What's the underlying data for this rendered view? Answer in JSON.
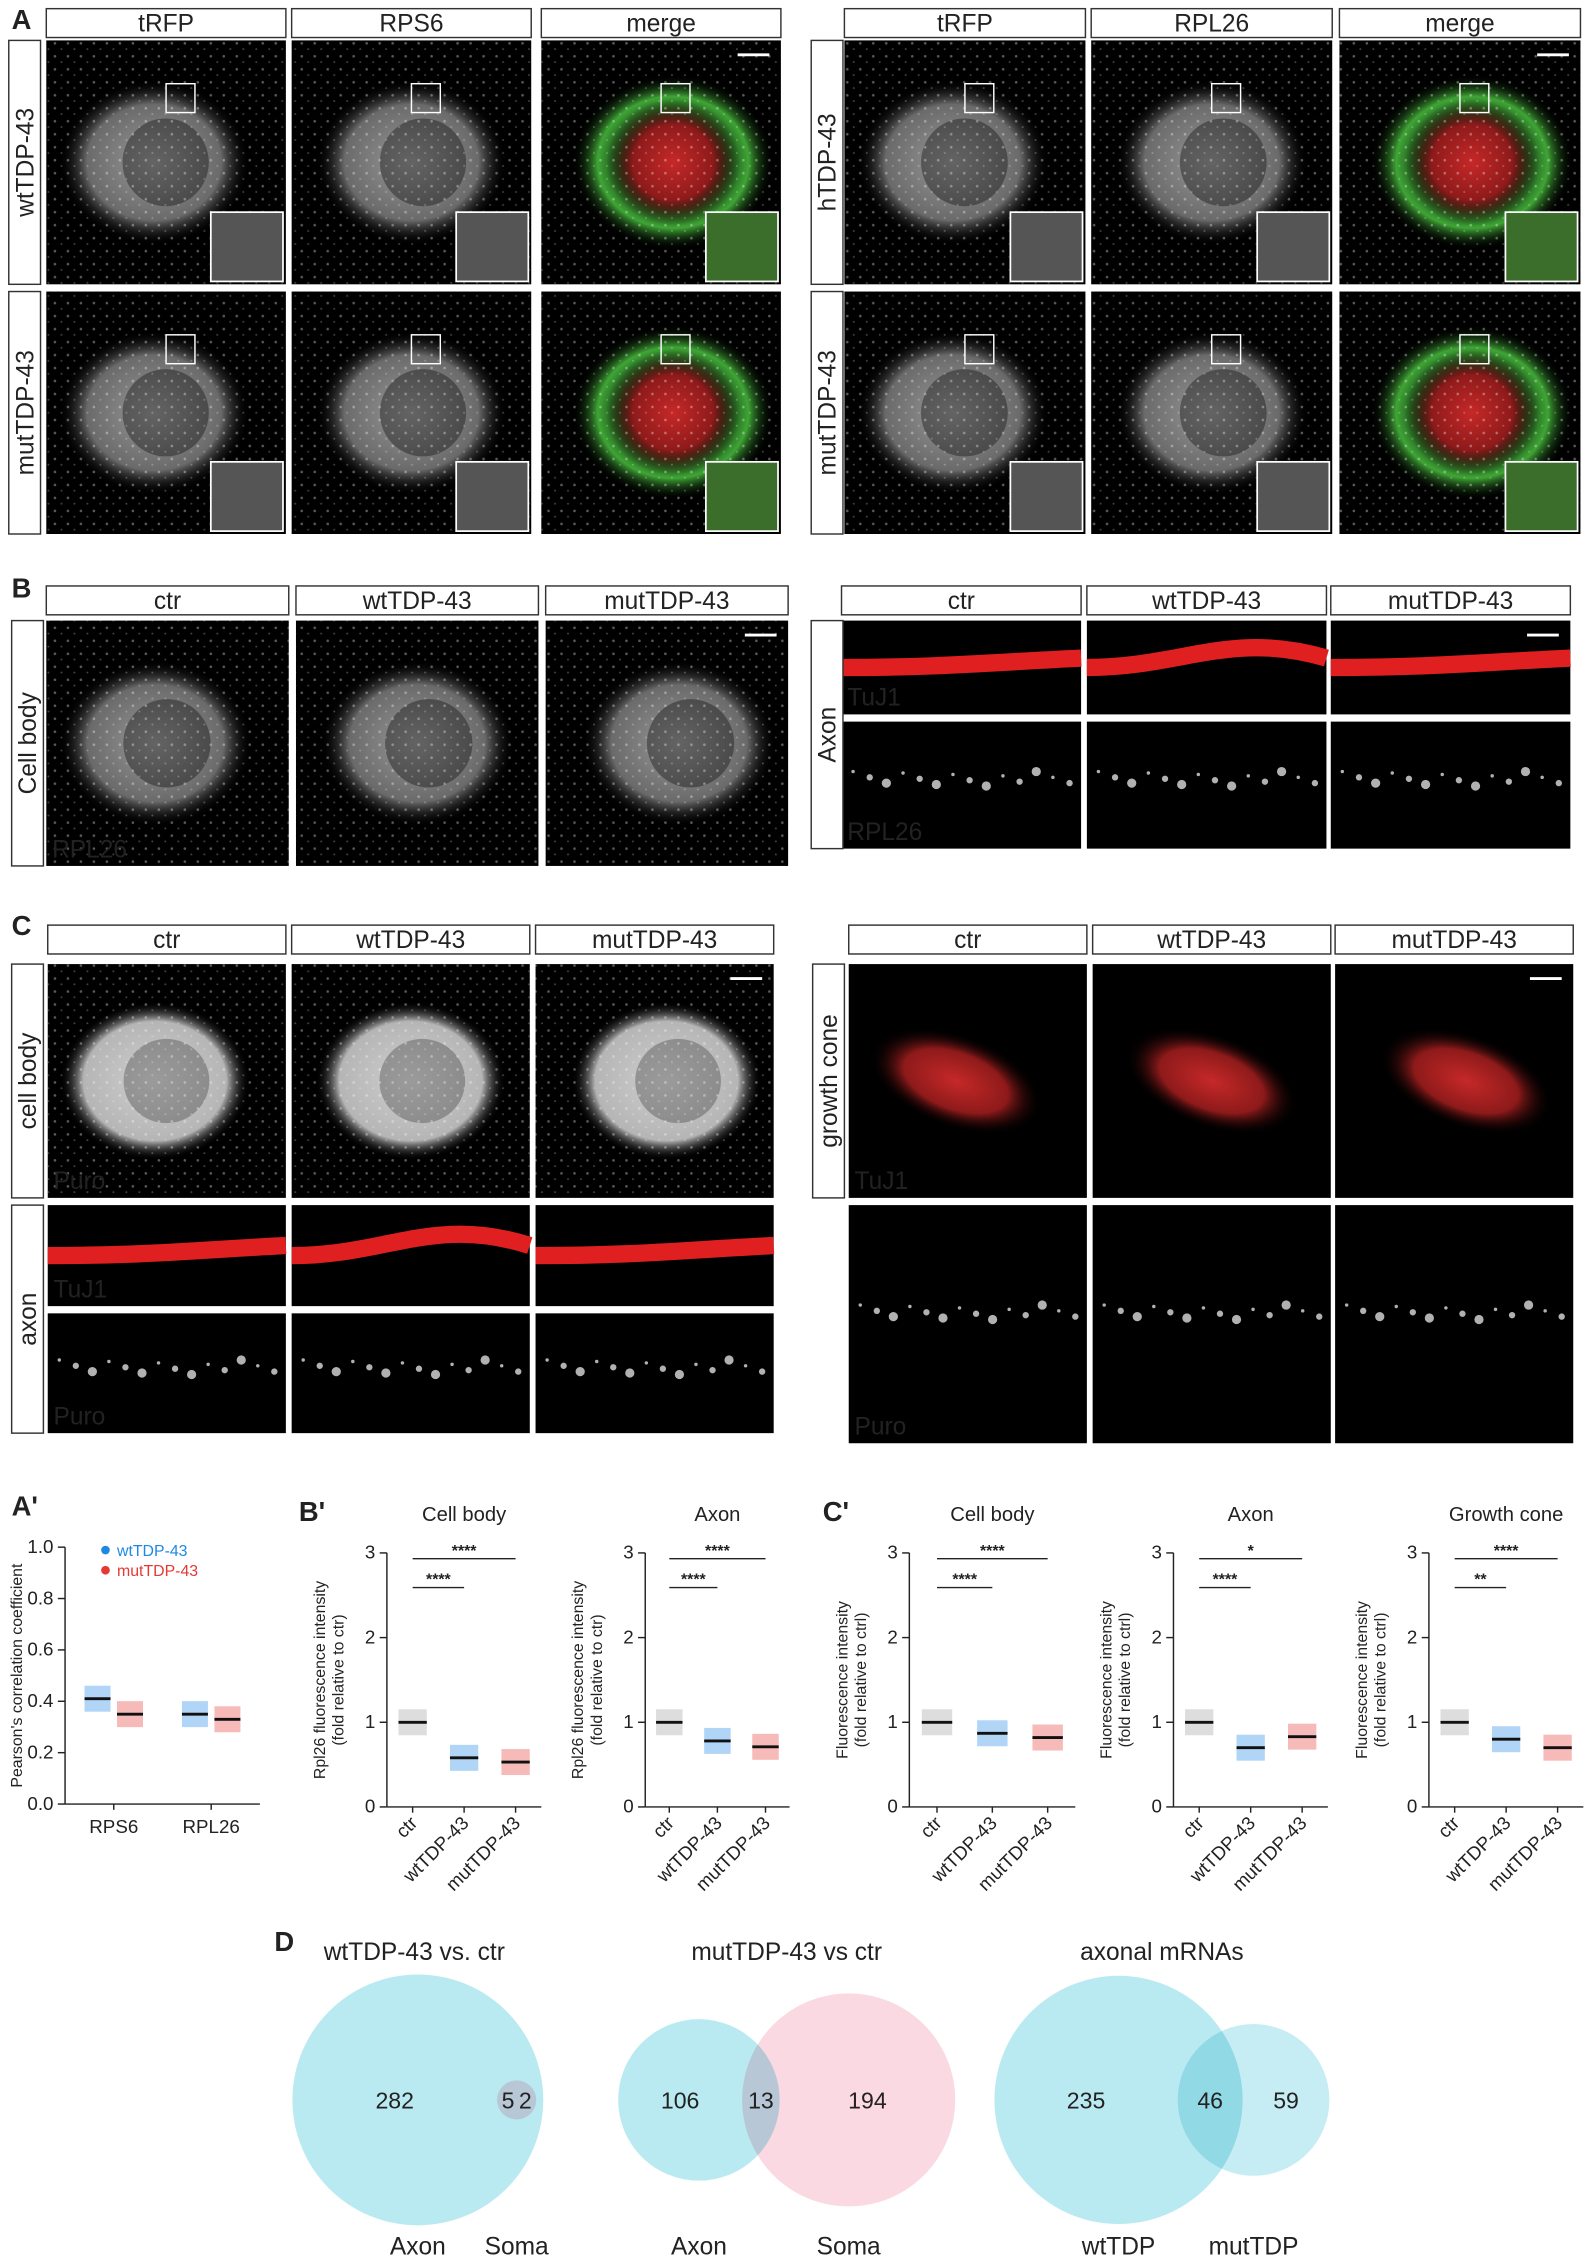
{
  "panels": [
    {
      "label": "A",
      "groups": [
        {
          "columns": [
            "tRFP",
            "RPS6",
            "merge"
          ],
          "column_colors": [
            "#d81b60",
            "#43b02a",
            "#222"
          ],
          "rows": [
            "wtTDP-43",
            "mutTDP-43"
          ]
        },
        {
          "columns": [
            "tRFP",
            "RPL26",
            "merge"
          ],
          "column_colors": [
            "#e53935",
            "#43b02a",
            "#222"
          ],
          "rows": [
            "hTDP-43",
            "mutTDP-43"
          ]
        }
      ]
    },
    {
      "label": "B",
      "groups": [
        {
          "columns": [
            "ctr",
            "wtTDP-43",
            "mutTDP-43"
          ],
          "rows": [
            "Cell body"
          ],
          "stains": [
            "RPL26"
          ]
        },
        {
          "columns": [
            "ctr",
            "wtTDP-43",
            "mutTDP-43"
          ],
          "rows": [
            "Axon"
          ],
          "stains": [
            "TuJ1",
            "RPL26"
          ]
        }
      ]
    },
    {
      "label": "C",
      "groups": [
        {
          "columns": [
            "ctr",
            "wtTDP-43",
            "mutTDP-43"
          ],
          "rows": [
            "cell body",
            "axon"
          ],
          "stains": [
            "Puro",
            "TuJ1",
            "Puro"
          ]
        },
        {
          "columns": [
            "ctr",
            "wtTDP-43",
            "mutTDP-43"
          ],
          "rows": [
            "growth cone"
          ],
          "stains": [
            "TuJ1",
            "Puro"
          ]
        }
      ]
    }
  ],
  "stain_colors": {
    "TuJ1": "#e53935",
    "Puro": "#43b02a",
    "RPL26": "#43b02a"
  },
  "chart_data": [
    {
      "type": "dot",
      "label": "A'",
      "ylabel": [
        "Pearson's correlation coefficient"
      ],
      "categories": [
        "RPS6",
        "RPL26"
      ],
      "series": [
        {
          "name": "wtTDP-43",
          "color": "#1e88e5",
          "values": [
            0.41,
            0.35
          ]
        },
        {
          "name": "mutTDP-43",
          "color": "#e53935",
          "values": [
            0.35,
            0.33
          ]
        }
      ],
      "ylim": [
        0,
        1.0
      ],
      "yticks": [
        {
          "value": 0,
          "label": "0.0"
        },
        {
          "value": 0.2,
          "label": "0.2"
        },
        {
          "value": 0.4,
          "label": "0.4"
        },
        {
          "value": 0.6,
          "label": "0.6"
        },
        {
          "value": 0.8,
          "label": "0.8"
        },
        {
          "value": 1.0,
          "label": "1.0"
        }
      ],
      "legend": "upper-left"
    },
    {
      "type": "dot",
      "label": "B'",
      "title": "Cell body",
      "ylabel": [
        "Rpl26 fluorescence intensity",
        "(fold relative to ctr)"
      ],
      "categories": [
        "ctr",
        "wtTDP-43",
        "mutTDP-43"
      ],
      "values": [
        1.0,
        0.58,
        0.53
      ],
      "colors": [
        "#9e9e9e",
        "#1e88e5",
        "#e53935"
      ],
      "ylim": [
        0,
        3
      ],
      "yticks": [
        0,
        1,
        2,
        3
      ],
      "comparisons": [
        {
          "groups": [
            "ctr",
            "mutTDP-43"
          ],
          "label": "****"
        },
        {
          "groups": [
            "ctr",
            "wtTDP-43"
          ],
          "label": "****"
        }
      ]
    },
    {
      "type": "dot",
      "title": "Axon",
      "ylabel": [
        "Rpl26 fluorescence intensity",
        "(fold relative to ctr)"
      ],
      "categories": [
        "ctr",
        "wtTDP-43",
        "mutTDP-43"
      ],
      "values": [
        1.0,
        0.78,
        0.71
      ],
      "colors": [
        "#9e9e9e",
        "#1e88e5",
        "#e53935"
      ],
      "ylim": [
        0,
        3
      ],
      "yticks": [
        0,
        1,
        2,
        3
      ],
      "comparisons": [
        {
          "groups": [
            "ctr",
            "mutTDP-43"
          ],
          "label": "****"
        },
        {
          "groups": [
            "ctr",
            "wtTDP-43"
          ],
          "label": "****"
        }
      ]
    },
    {
      "type": "dot",
      "label": "C'",
      "title": "Cell body",
      "ylabel": [
        "Fluorescence intensity",
        "(fold relative to ctrl)"
      ],
      "categories": [
        "ctr",
        "wtTDP-43",
        "mutTDP-43"
      ],
      "values": [
        1.0,
        0.87,
        0.82
      ],
      "colors": [
        "#9e9e9e",
        "#1e88e5",
        "#e53935"
      ],
      "ylim": [
        0,
        3
      ],
      "yticks": [
        0,
        1,
        2,
        3
      ],
      "comparisons": [
        {
          "groups": [
            "ctr",
            "mutTDP-43"
          ],
          "label": "****"
        },
        {
          "groups": [
            "ctr",
            "wtTDP-43"
          ],
          "label": "****"
        }
      ]
    },
    {
      "type": "dot",
      "title": "Axon",
      "ylabel": [
        "Fluorescence intensity",
        "(fold relative to ctrl)"
      ],
      "categories": [
        "ctr",
        "wtTDP-43",
        "mutTDP-43"
      ],
      "values": [
        1.0,
        0.7,
        0.83
      ],
      "colors": [
        "#9e9e9e",
        "#1e88e5",
        "#e53935"
      ],
      "ylim": [
        0,
        3
      ],
      "yticks": [
        0,
        1,
        2,
        3
      ],
      "comparisons": [
        {
          "groups": [
            "ctr",
            "mutTDP-43"
          ],
          "label": "*"
        },
        {
          "groups": [
            "ctr",
            "wtTDP-43"
          ],
          "label": "****"
        }
      ]
    },
    {
      "type": "dot",
      "title": "Growth cone",
      "ylabel": [
        "Fluorescence intensity",
        "(fold relative to ctrl)"
      ],
      "categories": [
        "ctr",
        "wtTDP-43",
        "mutTDP-43"
      ],
      "values": [
        1.0,
        0.8,
        0.7
      ],
      "colors": [
        "#9e9e9e",
        "#1e88e5",
        "#e53935"
      ],
      "ylim": [
        0,
        3
      ],
      "yticks": [
        0,
        1,
        2,
        3
      ],
      "comparisons": [
        {
          "groups": [
            "ctr",
            "mutTDP-43"
          ],
          "label": "****"
        },
        {
          "groups": [
            "ctr",
            "wtTDP-43"
          ],
          "label": "**"
        }
      ]
    },
    {
      "type": "venn",
      "label": "D",
      "title": "wtTDP-43 vs. ctr",
      "sets": [
        "Axon",
        "Soma"
      ],
      "counts": [
        282,
        5,
        2
      ],
      "colors": [
        "#aee6ee",
        "#f9c9d5"
      ]
    },
    {
      "type": "venn",
      "title": "mutTDP-43 vs ctr",
      "sets": [
        "Axon",
        "Soma"
      ],
      "counts": [
        106,
        13,
        194
      ],
      "colors": [
        "#aee6ee",
        "#f9c9d5"
      ]
    },
    {
      "type": "venn",
      "title": "axonal mRNAs",
      "sets": [
        "wtTDP",
        "mutTDP"
      ],
      "counts": [
        235,
        46,
        59
      ],
      "colors": [
        "#aee6ee",
        "#aee6ee"
      ]
    }
  ]
}
